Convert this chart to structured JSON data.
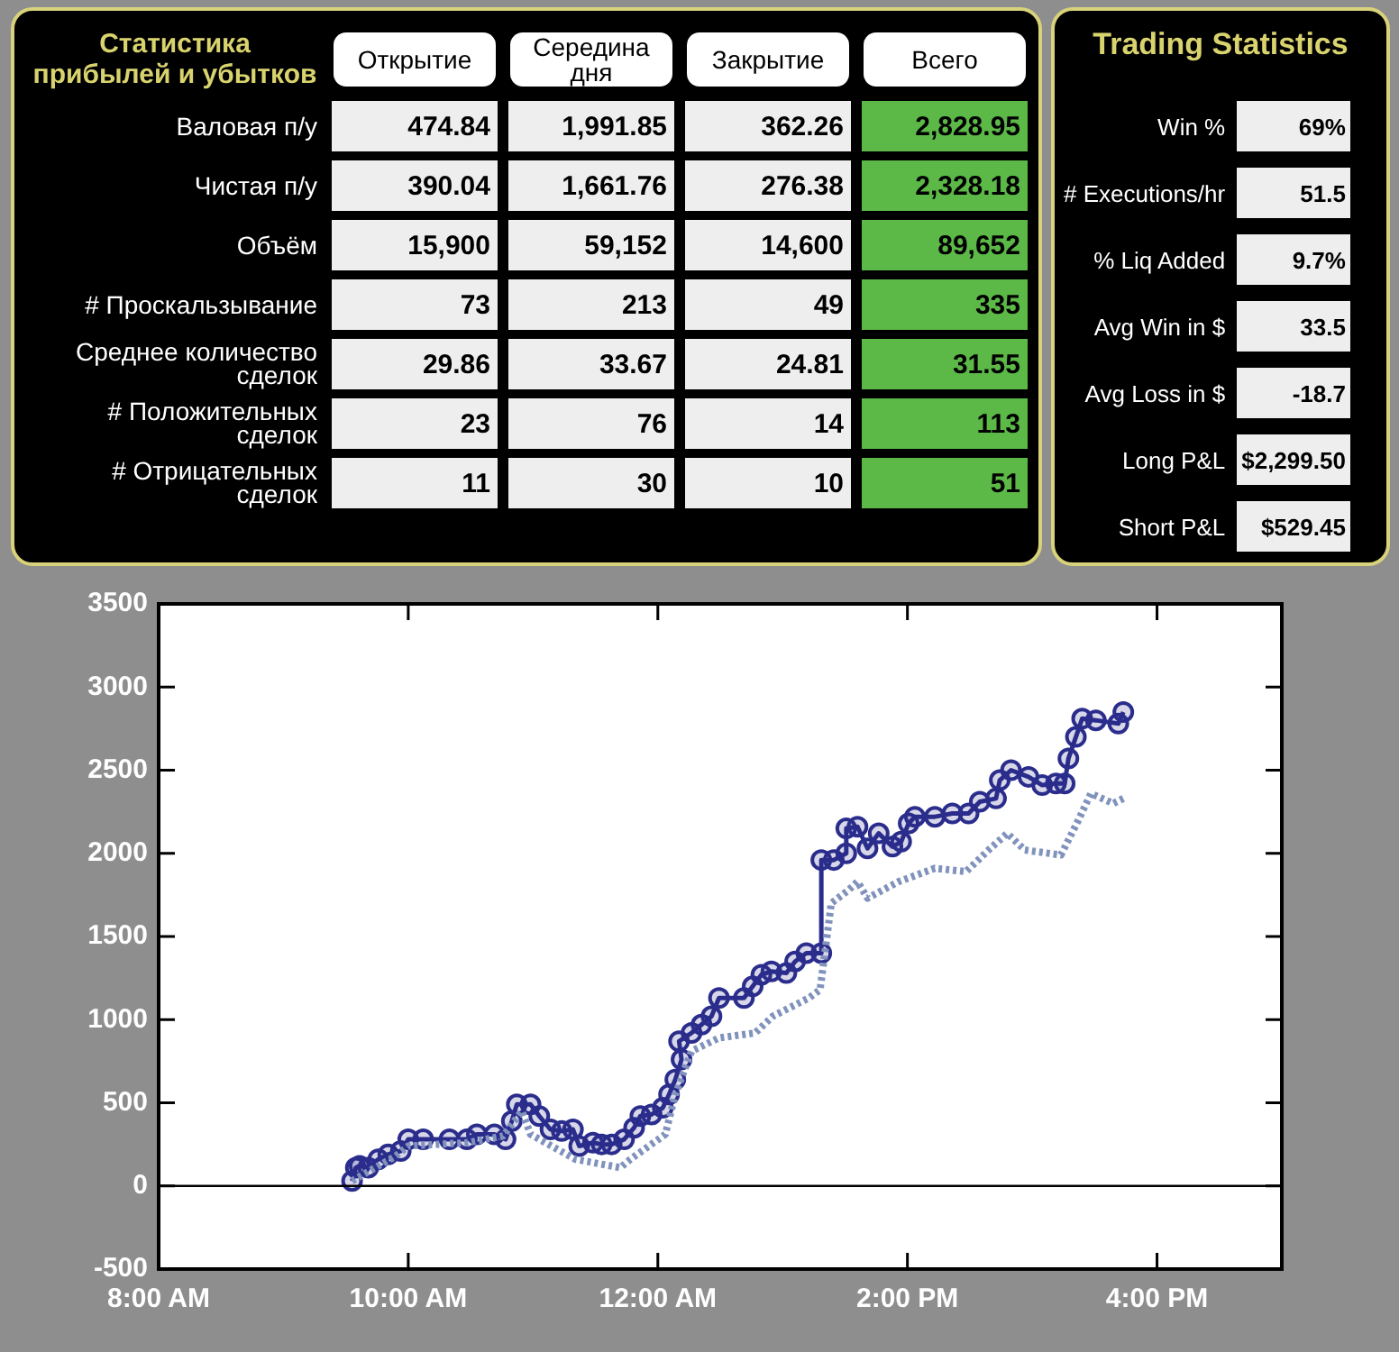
{
  "chart_data": [
    {
      "type": "other",
      "title": "Статистика прибылей и убытков",
      "categories": [
        "Открытие",
        "Середина дня",
        "Закрытие",
        "Всего"
      ],
      "y_categories": [
        "Валовая п/у",
        "Чистая п/у",
        "Объём",
        "# Проскальзывание",
        "Среднее количество сделок",
        "# Положительных сделок",
        "# Отрицательных сделок"
      ],
      "cell_labels": [
        [
          "474.84",
          "1,991.85",
          "362.26",
          "2,828.95"
        ],
        [
          "390.04",
          "1,661.76",
          "276.38",
          "2,328.18"
        ],
        [
          "15,900",
          "59,152",
          "14,600",
          "89,652"
        ],
        [
          "73",
          "213",
          "49",
          "335"
        ],
        [
          "29.86",
          "33.67",
          "24.81",
          "31.55"
        ],
        [
          "23",
          "76",
          "14",
          "113"
        ],
        [
          "11",
          "30",
          "10",
          "51"
        ]
      ]
    },
    {
      "type": "other",
      "title": "Trading Statistics",
      "y_categories": [
        "Win %",
        "# Executions/hr",
        "% Liq Added",
        "Avg Win in $",
        "Avg Loss in $",
        "Long P&L",
        "Short P&L"
      ],
      "cell_labels": [
        [
          "69%"
        ],
        [
          "51.5"
        ],
        [
          "9.7%"
        ],
        [
          "33.5"
        ],
        [
          "-18.7"
        ],
        [
          "$2,299.50"
        ],
        [
          "$529.45"
        ]
      ]
    },
    {
      "type": "line",
      "xlim": [
        8,
        17
      ],
      "xticks": [
        {
          "value": 8,
          "label": "8:00 AM"
        },
        {
          "value": 10,
          "label": "10:00 AM"
        },
        {
          "value": 12,
          "label": "12:00 AM"
        },
        {
          "value": 14,
          "label": "2:00 PM"
        },
        {
          "value": 16,
          "label": "4:00 PM"
        }
      ],
      "ylim": [
        -500,
        3500
      ],
      "yticks": [
        -500,
        0,
        500,
        1000,
        1500,
        2000,
        2500,
        3000,
        3500
      ],
      "grid": false,
      "legend": false,
      "ref_lines": [
        {
          "axis": "y",
          "value": 0,
          "color": "#000000"
        }
      ],
      "series": [
        {
          "color": "#8193bd",
          "marker": "none",
          "line_style": "dotted",
          "x": [
            9.55,
            9.9,
            10.0,
            10.47,
            10.76,
            10.91,
            10.98,
            11.34,
            11.7,
            11.78,
            12.06,
            12.14,
            12.27,
            12.49,
            12.78,
            12.92,
            13.21,
            13.3,
            13.39,
            13.53,
            13.6,
            13.68,
            13.93,
            14.22,
            14.47,
            14.65,
            14.8,
            14.94,
            15.23,
            15.37,
            15.47,
            15.65,
            15.73
          ],
          "values": [
            30,
            180,
            240,
            260,
            300,
            450,
            310,
            160,
            110,
            160,
            310,
            550,
            810,
            890,
            920,
            1020,
            1130,
            1180,
            1700,
            1780,
            1830,
            1730,
            1830,
            1910,
            1890,
            2020,
            2120,
            2020,
            1990,
            2200,
            2360,
            2300,
            2330
          ]
        },
        {
          "color": "#2b2d8c",
          "marker": "circle",
          "line_style": "solid",
          "x": [
            9.55,
            9.58,
            9.61,
            9.68,
            9.76,
            9.84,
            9.94,
            10.0,
            10.12,
            10.33,
            10.47,
            10.55,
            10.69,
            10.78,
            10.83,
            10.87,
            10.98,
            11.05,
            11.14,
            11.23,
            11.32,
            11.37,
            11.48,
            11.55,
            11.63,
            11.73,
            11.81,
            11.86,
            11.95,
            12.04,
            12.09,
            12.14,
            12.19,
            12.17,
            12.27,
            12.35,
            12.43,
            12.49,
            12.69,
            12.76,
            12.83,
            12.91,
            13.03,
            13.1,
            13.19,
            13.31,
            13.31,
            13.41,
            13.51,
            13.51,
            13.6,
            13.68,
            13.77,
            13.88,
            13.95,
            14.01,
            14.06,
            14.22,
            14.36,
            14.49,
            14.58,
            14.71,
            14.74,
            14.83,
            14.97,
            15.08,
            15.19,
            15.26,
            15.29,
            15.35,
            15.4,
            15.51,
            15.69,
            15.73
          ],
          "values": [
            30,
            110,
            120,
            110,
            160,
            190,
            210,
            280,
            280,
            280,
            280,
            310,
            310,
            280,
            390,
            490,
            490,
            420,
            340,
            330,
            340,
            240,
            260,
            250,
            250,
            280,
            350,
            420,
            430,
            470,
            550,
            640,
            760,
            870,
            920,
            970,
            1020,
            1130,
            1130,
            1200,
            1270,
            1290,
            1280,
            1350,
            1400,
            1400,
            1960,
            1960,
            2000,
            2150,
            2160,
            2030,
            2120,
            2040,
            2070,
            2180,
            2220,
            2220,
            2240,
            2240,
            2310,
            2330,
            2440,
            2500,
            2460,
            2410,
            2420,
            2420,
            2570,
            2700,
            2810,
            2800,
            2780,
            2850
          ]
        }
      ]
    }
  ]
}
